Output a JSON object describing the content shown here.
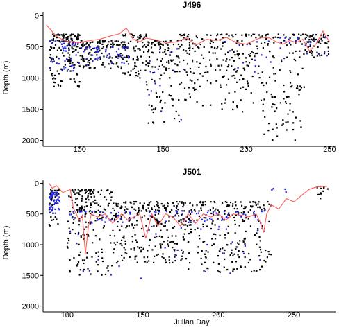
{
  "chart_data": [
    {
      "type": "scatter",
      "title": "J496",
      "ylabel": "Depth (m)",
      "xlabel": "",
      "xlim": [
        78,
        254
      ],
      "ylim": [
        2050,
        -50
      ],
      "y_reversed": true,
      "xticks": [
        100,
        150,
        200,
        250
      ],
      "yticks": [
        0,
        500,
        1000,
        1500,
        2000
      ],
      "colors": {
        "black": "#000000",
        "blue": "#1f1fdd",
        "line": "#ff5a5a"
      },
      "line_series": {
        "x": [
          80,
          83,
          86,
          90,
          94,
          100,
          106,
          112,
          118,
          124,
          128,
          132,
          136,
          140,
          146,
          152,
          158,
          164,
          170,
          176,
          182,
          188,
          194,
          200,
          206,
          210,
          214,
          218,
          222,
          226,
          230,
          234,
          238,
          242,
          246,
          250
        ],
        "y": [
          150,
          240,
          330,
          390,
          420,
          430,
          400,
          380,
          330,
          290,
          200,
          380,
          420,
          360,
          390,
          440,
          420,
          360,
          470,
          380,
          400,
          350,
          430,
          460,
          380,
          350,
          360,
          420,
          460,
          400,
          430,
          380,
          570,
          450,
          250,
          420
        ]
      },
      "scatter_black_seeds": {
        "segments": [
          {
            "x": [
              82,
              100
            ],
            "y": [
              300,
              1150
            ],
            "count": 150
          },
          {
            "x": [
              100,
              125
            ],
            "y": [
              400,
              850
            ],
            "count": 120
          },
          {
            "x": [
              125,
              140
            ],
            "y": [
              300,
              1000
            ],
            "count": 90
          },
          {
            "x": [
              140,
              160
            ],
            "y": [
              400,
              1750
            ],
            "count": 120
          },
          {
            "x": [
              160,
              185
            ],
            "y": [
              300,
              1450
            ],
            "count": 110
          },
          {
            "x": [
              185,
              210
            ],
            "y": [
              300,
              1550
            ],
            "count": 120
          },
          {
            "x": [
              210,
              235
            ],
            "y": [
              300,
              2000
            ],
            "count": 120
          },
          {
            "x": [
              235,
              250
            ],
            "y": [
              300,
              700
            ],
            "count": 60
          }
        ]
      },
      "scatter_blue_seeds": {
        "segments": [
          {
            "x": [
              82,
              100
            ],
            "y": [
              400,
              900
            ],
            "count": 45
          },
          {
            "x": [
              100,
              130
            ],
            "y": [
              500,
              800
            ],
            "count": 45
          },
          {
            "x": [
              140,
              165
            ],
            "y": [
              500,
              1850
            ],
            "count": 15
          },
          {
            "x": [
              180,
              215
            ],
            "y": [
              400,
              1000
            ],
            "count": 15
          },
          {
            "x": [
              215,
              250
            ],
            "y": [
              350,
              750
            ],
            "count": 20
          }
        ]
      }
    },
    {
      "type": "scatter",
      "title": "J501",
      "ylabel": "Depth (m)",
      "xlabel": "Julian Day",
      "xlim": [
        84,
        278
      ],
      "ylim": [
        2050,
        -50
      ],
      "y_reversed": true,
      "xticks": [
        100,
        150,
        200,
        250
      ],
      "yticks": [
        0,
        500,
        1000,
        1500,
        2000
      ],
      "colors": {
        "black": "#000000",
        "blue": "#1f1fdd",
        "line": "#ff5a5a"
      },
      "line_series": {
        "x": [
          88,
          90,
          93,
          97,
          102,
          104,
          106,
          108,
          110,
          112,
          114,
          116,
          120,
          125,
          130,
          136,
          140,
          144,
          148,
          152,
          156,
          160,
          165,
          170,
          175,
          180,
          185,
          190,
          195,
          200,
          205,
          210,
          215,
          220,
          225,
          228,
          230,
          232,
          235,
          240,
          245,
          250,
          255,
          260,
          265,
          270,
          272
        ],
        "y": [
          0,
          80,
          40,
          150,
          100,
          400,
          500,
          600,
          520,
          1150,
          700,
          500,
          550,
          500,
          650,
          500,
          600,
          550,
          500,
          900,
          500,
          700,
          500,
          550,
          700,
          500,
          650,
          500,
          550,
          500,
          600,
          500,
          520,
          550,
          500,
          650,
          800,
          500,
          350,
          420,
          250,
          300,
          200,
          100,
          60,
          50,
          50
        ]
      },
      "scatter_black_seeds": {
        "segments": [
          {
            "x": [
              88,
              95
            ],
            "y": [
              100,
              700
            ],
            "count": 30
          },
          {
            "x": [
              100,
              130
            ],
            "y": [
              100,
              1500
            ],
            "count": 200
          },
          {
            "x": [
              130,
              180
            ],
            "y": [
              300,
              1300
            ],
            "count": 280
          },
          {
            "x": [
              180,
              235
            ],
            "y": [
              300,
              1450
            ],
            "count": 240
          },
          {
            "x": [
              265,
              275
            ],
            "y": [
              50,
              250
            ],
            "count": 12
          }
        ]
      },
      "scatter_blue_seeds": {
        "segments": [
          {
            "x": [
              88,
              95
            ],
            "y": [
              150,
              500
            ],
            "count": 50
          },
          {
            "x": [
              100,
              235
            ],
            "y": [
              450,
              650
            ],
            "count": 90
          },
          {
            "x": [
              100,
              235
            ],
            "y": [
              700,
              1550
            ],
            "count": 30
          },
          {
            "x": [
              235,
              250
            ],
            "y": [
              80,
              200
            ],
            "count": 4
          }
        ]
      }
    }
  ]
}
